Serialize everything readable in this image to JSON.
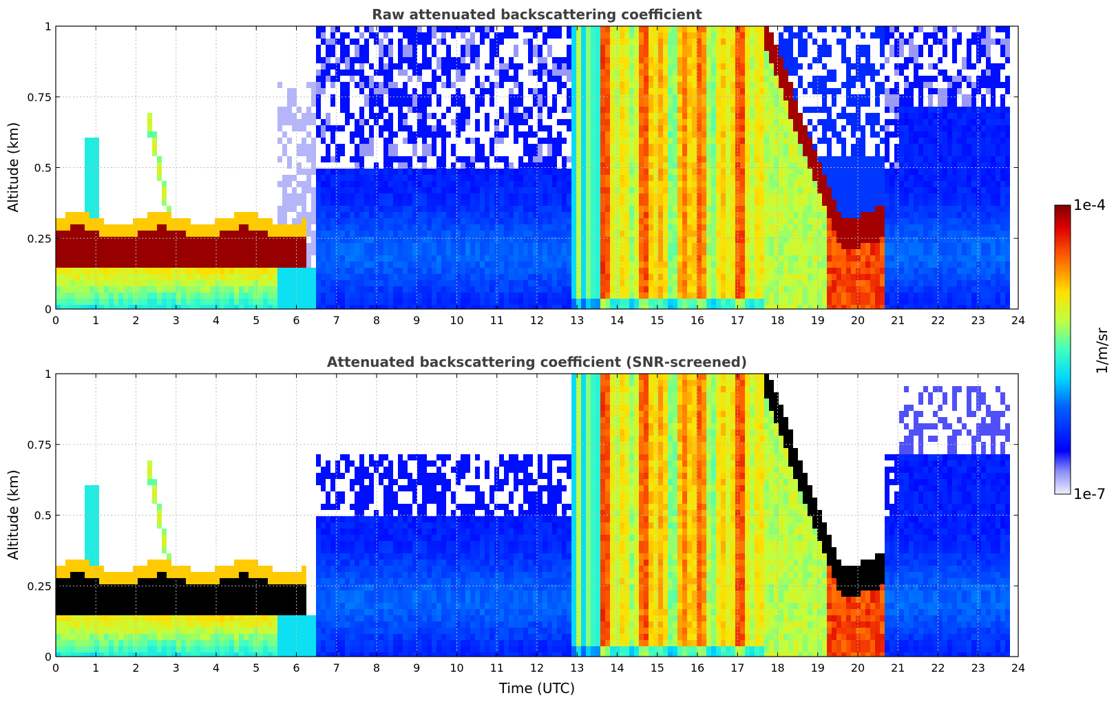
{
  "chart_data": [
    {
      "type": "heatmap",
      "title": "Raw attenuated backscattering coefficient",
      "xlabel": "",
      "ylabel": "Altitude (km)",
      "xlim": [
        0,
        24
      ],
      "ylim": [
        0,
        1
      ],
      "x_ticks": [
        "0",
        "1",
        "2",
        "3",
        "4",
        "5",
        "6",
        "7",
        "8",
        "9",
        "10",
        "11",
        "12",
        "13",
        "14",
        "15",
        "16",
        "17",
        "18",
        "19",
        "20",
        "21",
        "22",
        "23",
        "24"
      ],
      "y_ticks": [
        "0",
        "0.25",
        "0.5",
        "0.75",
        "1"
      ],
      "y_tick_values": [
        0,
        0.25,
        0.5,
        0.75,
        1
      ],
      "grid": true,
      "screened": false
    },
    {
      "type": "heatmap",
      "title": "Attenuated backscattering coefficient (SNR-screened)",
      "xlabel": "Time (UTC)",
      "ylabel": "Altitude (km)",
      "xlim": [
        0,
        24
      ],
      "ylim": [
        0,
        1
      ],
      "x_ticks": [
        "0",
        "1",
        "2",
        "3",
        "4",
        "5",
        "6",
        "7",
        "8",
        "9",
        "10",
        "11",
        "12",
        "13",
        "14",
        "15",
        "16",
        "17",
        "18",
        "19",
        "20",
        "21",
        "22",
        "23",
        "24"
      ],
      "y_ticks": [
        "0",
        "0.25",
        "0.5",
        "0.75",
        "1"
      ],
      "y_tick_values": [
        0,
        0.25,
        0.5,
        0.75,
        1
      ],
      "grid": true,
      "screened": true
    }
  ],
  "colorbar": {
    "label": "1/m/sr",
    "max_label": "1e-4",
    "min_label": "1e-7",
    "range": [
      1e-07,
      0.0001
    ],
    "scale": "log",
    "colormap": "jet"
  }
}
